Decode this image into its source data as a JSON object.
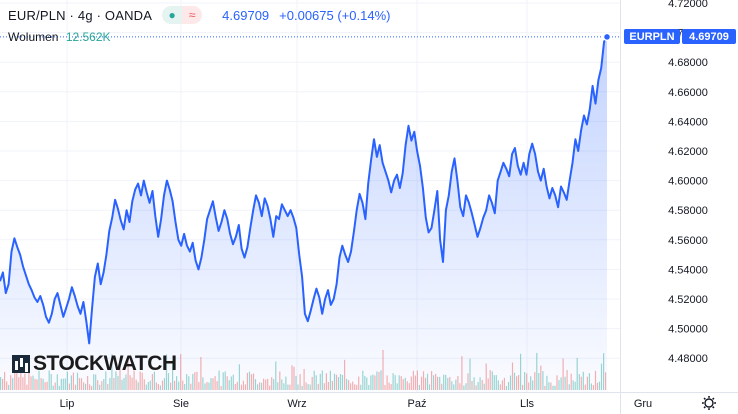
{
  "legend": {
    "symbol": "EUR/PLN · 4g · OANDA",
    "last": "4.69709",
    "change": "+0.00675 (+0.14%)",
    "icon_buy": "●",
    "icon_sell": "≈"
  },
  "volume": {
    "label": "Wolumen",
    "value": "12.562K"
  },
  "tags": {
    "symbol": "EURPLN",
    "price": "4.69709"
  },
  "logo": "STOCKWATCH",
  "settings_icon": "gear-icon",
  "colors": {
    "line": "#2962ff",
    "vol_up": "#26a69a",
    "vol_down": "#ef5350"
  },
  "chart_data": {
    "type": "area",
    "ylim": [
      4.47,
      4.72
    ],
    "y_ticks": [
      "4.72000",
      "4.70000",
      "4.68000",
      "4.66000",
      "4.64000",
      "4.62000",
      "4.60000",
      "4.58000",
      "4.56000",
      "4.54000",
      "4.52000",
      "4.50000",
      "4.48000"
    ],
    "x_ticks": [
      "Lip",
      "Sie",
      "Wrz",
      "Paź",
      "Lls",
      "Gru"
    ],
    "last_value": 4.69709,
    "y": [
      4.532,
      4.538,
      4.524,
      4.53,
      4.552,
      4.561,
      4.555,
      4.55,
      4.542,
      4.536,
      4.53,
      4.526,
      4.521,
      4.518,
      4.522,
      4.516,
      4.508,
      4.504,
      4.51,
      4.52,
      4.524,
      4.516,
      4.508,
      4.514,
      4.52,
      4.528,
      4.522,
      4.515,
      4.51,
      4.518,
      4.505,
      4.49,
      4.514,
      4.535,
      4.544,
      4.53,
      4.538,
      4.55,
      4.566,
      4.575,
      4.587,
      4.581,
      4.573,
      4.567,
      4.58,
      4.572,
      4.586,
      4.594,
      4.598,
      4.59,
      4.6,
      4.592,
      4.585,
      4.593,
      4.576,
      4.562,
      4.574,
      4.59,
      4.6,
      4.594,
      4.586,
      4.572,
      4.56,
      4.556,
      4.564,
      4.556,
      4.552,
      4.558,
      4.546,
      4.54,
      4.548,
      4.56,
      4.574,
      4.58,
      4.586,
      4.575,
      4.566,
      4.572,
      4.58,
      4.574,
      4.564,
      4.557,
      4.562,
      4.57,
      4.554,
      4.548,
      4.555,
      4.568,
      4.58,
      4.59,
      4.585,
      4.576,
      4.588,
      4.583,
      4.574,
      4.562,
      4.576,
      4.574,
      4.584,
      4.58,
      4.576,
      4.58,
      4.575,
      4.568,
      4.55,
      4.535,
      4.51,
      4.505,
      4.512,
      4.52,
      4.527,
      4.521,
      4.51,
      4.52,
      4.526,
      4.516,
      4.52,
      4.53,
      4.548,
      4.556,
      4.55,
      4.545,
      4.552,
      4.565,
      4.58,
      4.591,
      4.585,
      4.574,
      4.598,
      4.614,
      4.628,
      4.616,
      4.624,
      4.612,
      4.606,
      4.6,
      4.592,
      4.6,
      4.604,
      4.595,
      4.605,
      4.624,
      4.637,
      4.627,
      4.633,
      4.62,
      4.61,
      4.595,
      4.575,
      4.565,
      4.568,
      4.58,
      4.593,
      4.56,
      4.545,
      4.58,
      4.59,
      4.606,
      4.615,
      4.6,
      4.582,
      4.576,
      4.59,
      4.585,
      4.578,
      4.57,
      4.562,
      4.568,
      4.575,
      4.58,
      4.59,
      4.585,
      4.578,
      4.6,
      4.606,
      4.612,
      4.608,
      4.603,
      4.618,
      4.622,
      4.61,
      4.604,
      4.612,
      4.604,
      4.618,
      4.625,
      4.618,
      4.606,
      4.6,
      4.608,
      4.596,
      4.588,
      4.595,
      4.59,
      4.582,
      4.596,
      4.592,
      4.587,
      4.6,
      4.612,
      4.628,
      4.62,
      4.634,
      4.644,
      4.638,
      4.648,
      4.664,
      4.652,
      4.668,
      4.676,
      4.694,
      4.697
    ]
  }
}
